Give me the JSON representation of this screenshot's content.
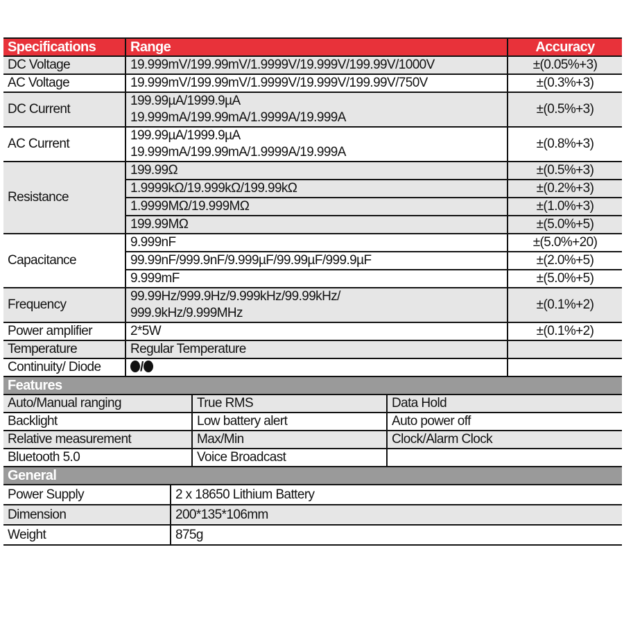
{
  "colors": {
    "header_red": "#e8323a",
    "section_grey": "#9a9a9a",
    "row_grey": "#e6e6e6"
  },
  "specifications": {
    "headers": [
      "Specifications",
      "Range",
      "Accuracy"
    ],
    "rows": [
      {
        "name": "DC Voltage",
        "items": [
          {
            "range": [
              "19.999mV/199.99mV/1.9999V/19.999V/199.99V/1000V"
            ],
            "accuracy": "±(0.05%+3)"
          }
        ]
      },
      {
        "name": "AC Voltage",
        "items": [
          {
            "range": [
              "19.999mV/199.99mV/1.9999V/19.999V/199.99V/750V"
            ],
            "accuracy": "±(0.3%+3)"
          }
        ]
      },
      {
        "name": "DC Current",
        "items": [
          {
            "range": [
              "199.99µA/1999.9µA",
              "19.999mA/199.99mA/1.9999A/19.999A"
            ],
            "accuracy": "±(0.5%+3)"
          }
        ]
      },
      {
        "name": "AC Current",
        "items": [
          {
            "range": [
              "199.99µA/1999.9µA",
              "19.999mA/199.99mA/1.9999A/19.999A"
            ],
            "accuracy": "±(0.8%+3)"
          }
        ]
      },
      {
        "name": "Resistance",
        "items": [
          {
            "range": [
              "199.99Ω"
            ],
            "accuracy": "±(0.5%+3)"
          },
          {
            "range": [
              "1.9999kΩ/19.999kΩ/199.99kΩ"
            ],
            "accuracy": "±(0.2%+3)"
          },
          {
            "range": [
              "1.9999MΩ/19.999MΩ"
            ],
            "accuracy": "±(1.0%+3)"
          },
          {
            "range": [
              "199.99MΩ"
            ],
            "accuracy": "±(5.0%+5)"
          }
        ]
      },
      {
        "name": "Capacitance",
        "items": [
          {
            "range": [
              "9.999nF"
            ],
            "accuracy": "±(5.0%+20)"
          },
          {
            "range": [
              "99.99nF/999.9nF/9.999µF/99.99µF/999.9µF"
            ],
            "accuracy": "±(2.0%+5)"
          },
          {
            "range": [
              "9.999mF"
            ],
            "accuracy": "±(5.0%+5)"
          }
        ]
      },
      {
        "name": "Frequency",
        "items": [
          {
            "range": [
              "99.99Hz/999.9Hz/9.999kHz/99.99kHz/",
              "999.9kHz/9.999MHz"
            ],
            "accuracy": "±(0.1%+2)"
          }
        ]
      },
      {
        "name": "Power amplifier",
        "items": [
          {
            "range": [
              "2*5W"
            ],
            "accuracy": "±(0.1%+2)"
          }
        ]
      },
      {
        "name": "Temperature",
        "items": [
          {
            "range": [
              "Regular Temperature"
            ],
            "accuracy": ""
          }
        ]
      },
      {
        "name": "Continuity/ Diode",
        "items": [
          {
            "range": [],
            "icons": true,
            "separator": "/",
            "accuracy": ""
          }
        ]
      }
    ]
  },
  "features": {
    "title": "Features",
    "rows": [
      [
        "Auto/Manual ranging",
        "True RMS",
        "Data Hold"
      ],
      [
        "Backlight",
        "Low battery alert",
        "Auto power off"
      ],
      [
        "Relative measurement",
        "Max/Min",
        "Clock/Alarm Clock"
      ],
      [
        "Bluetooth 5.0",
        "Voice Broadcast",
        ""
      ]
    ]
  },
  "general": {
    "title": "General",
    "rows": [
      [
        "Power Supply",
        "2 x 18650 Lithium Battery"
      ],
      [
        "Dimension",
        "200*135*106mm"
      ],
      [
        "Weight",
        "875g"
      ]
    ]
  }
}
